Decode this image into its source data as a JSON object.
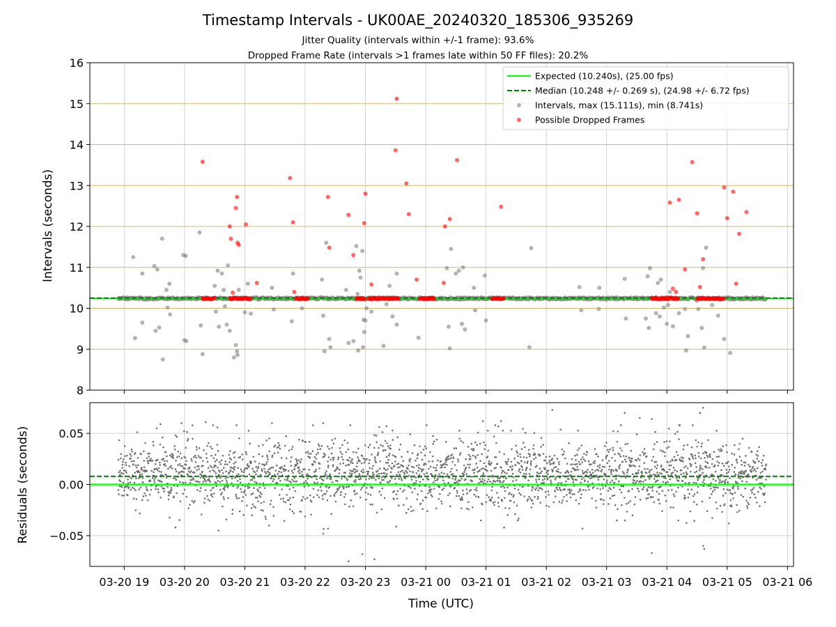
{
  "chart_data": [
    {
      "type": "scatter",
      "title": "Timestamp Intervals - UK00AE_20240320_185306_935269",
      "subtitle_lines": [
        "Jitter Quality (intervals within +/-1 frame): 93.6%",
        "Dropped Frame Rate (intervals >1 frames late within 50 FF files): 20.2%"
      ],
      "ylabel": "Intervals (seconds)",
      "ylim": [
        8,
        16
      ],
      "yticks": [
        "8",
        "9",
        "10",
        "11",
        "12",
        "13",
        "14",
        "15",
        "16"
      ],
      "xlim_hours_utc": [
        18.43,
        30.1
      ],
      "xtick_hours_utc": [
        19,
        20,
        21,
        22,
        23,
        24,
        25,
        26,
        27,
        28,
        29,
        30
      ],
      "grid": {
        "x": true,
        "y": true,
        "y_color": "#d4b86a"
      },
      "legend_position": "upper right",
      "series": [
        {
          "name": "Expected (10.240s), (25.00 fps)",
          "kind": "hline",
          "value": 10.24,
          "color": "#00ff00",
          "style": "solid"
        },
        {
          "name": "Median (10.248 +/- 0.269 s), (24.98 +/- 6.72 fps)",
          "kind": "hline",
          "value": 10.248,
          "color": "#008000",
          "style": "dashed"
        },
        {
          "name": "Intervals, max (15.111s), min (8.741s)",
          "kind": "scatter",
          "color": "#808080",
          "baseline": 10.24,
          "baseline_range_hours": [
            18.9,
            29.65
          ],
          "points": [
            [
              19.15,
              11.25
            ],
            [
              19.18,
              9.27
            ],
            [
              19.3,
              9.65
            ],
            [
              19.3,
              10.85
            ],
            [
              19.5,
              11.03
            ],
            [
              19.52,
              9.45
            ],
            [
              19.55,
              10.95
            ],
            [
              19.58,
              9.53
            ],
            [
              19.63,
              11.7
            ],
            [
              19.64,
              8.75
            ],
            [
              19.7,
              10.45
            ],
            [
              19.72,
              10.02
            ],
            [
              19.75,
              10.6
            ],
            [
              19.76,
              9.85
            ],
            [
              19.98,
              11.3
            ],
            [
              20.0,
              9.22
            ],
            [
              20.02,
              11.28
            ],
            [
              20.03,
              9.2
            ],
            [
              20.25,
              11.85
            ],
            [
              20.27,
              9.58
            ],
            [
              20.3,
              8.88
            ],
            [
              20.5,
              10.55
            ],
            [
              20.52,
              9.92
            ],
            [
              20.55,
              10.92
            ],
            [
              20.57,
              9.55
            ],
            [
              20.62,
              10.85
            ],
            [
              20.65,
              10.45
            ],
            [
              20.67,
              10.05
            ],
            [
              20.7,
              9.6
            ],
            [
              20.72,
              11.05
            ],
            [
              20.75,
              9.45
            ],
            [
              20.82,
              8.8
            ],
            [
              20.85,
              9.1
            ],
            [
              20.87,
              8.95
            ],
            [
              20.88,
              8.86
            ],
            [
              20.9,
              10.45
            ],
            [
              20.92,
              10.25
            ],
            [
              21.0,
              9.9
            ],
            [
              21.05,
              10.6
            ],
            [
              21.1,
              9.87
            ],
            [
              21.45,
              10.5
            ],
            [
              21.48,
              9.97
            ],
            [
              21.78,
              9.68
            ],
            [
              21.8,
              10.85
            ],
            [
              21.95,
              10.0
            ],
            [
              22.28,
              10.7
            ],
            [
              22.3,
              9.82
            ],
            [
              22.32,
              8.95
            ],
            [
              22.35,
              11.6
            ],
            [
              22.4,
              9.25
            ],
            [
              22.42,
              9.05
            ],
            [
              22.68,
              10.45
            ],
            [
              22.72,
              9.15
            ],
            [
              22.8,
              9.2
            ],
            [
              22.85,
              11.52
            ],
            [
              22.87,
              10.35
            ],
            [
              22.88,
              8.97
            ],
            [
              22.9,
              10.92
            ],
            [
              22.92,
              10.75
            ],
            [
              22.95,
              11.4
            ],
            [
              22.96,
              9.05
            ],
            [
              22.97,
              9.72
            ],
            [
              22.98,
              9.42
            ],
            [
              23.0,
              9.7
            ],
            [
              23.02,
              10.0
            ],
            [
              23.1,
              9.92
            ],
            [
              23.3,
              9.08
            ],
            [
              23.35,
              10.1
            ],
            [
              23.4,
              10.55
            ],
            [
              23.45,
              9.8
            ],
            [
              23.52,
              9.6
            ],
            [
              23.52,
              10.85
            ],
            [
              23.88,
              9.28
            ],
            [
              24.35,
              10.98
            ],
            [
              24.38,
              9.55
            ],
            [
              24.4,
              9.02
            ],
            [
              24.42,
              11.45
            ],
            [
              24.5,
              10.85
            ],
            [
              24.55,
              10.92
            ],
            [
              24.6,
              9.62
            ],
            [
              24.62,
              11.0
            ],
            [
              24.65,
              9.48
            ],
            [
              24.8,
              10.5
            ],
            [
              24.82,
              9.95
            ],
            [
              24.98,
              10.8
            ],
            [
              25.0,
              9.7
            ],
            [
              25.72,
              9.05
            ],
            [
              25.75,
              11.47
            ],
            [
              26.55,
              10.52
            ],
            [
              26.58,
              9.95
            ],
            [
              26.87,
              9.98
            ],
            [
              26.88,
              10.5
            ],
            [
              27.3,
              10.72
            ],
            [
              27.32,
              9.75
            ],
            [
              27.65,
              9.75
            ],
            [
              27.68,
              10.78
            ],
            [
              27.7,
              9.52
            ],
            [
              27.72,
              10.98
            ],
            [
              27.82,
              9.88
            ],
            [
              27.85,
              10.62
            ],
            [
              27.88,
              9.8
            ],
            [
              27.9,
              10.7
            ],
            [
              27.95,
              10.02
            ],
            [
              28.0,
              9.62
            ],
            [
              28.02,
              10.08
            ],
            [
              28.05,
              10.4
            ],
            [
              28.1,
              9.56
            ],
            [
              28.2,
              9.88
            ],
            [
              28.3,
              9.98
            ],
            [
              28.32,
              8.97
            ],
            [
              28.35,
              9.32
            ],
            [
              28.5,
              10.18
            ],
            [
              28.52,
              9.98
            ],
            [
              28.58,
              9.52
            ],
            [
              28.6,
              10.98
            ],
            [
              28.62,
              9.04
            ],
            [
              28.65,
              11.48
            ],
            [
              28.75,
              10.08
            ],
            [
              28.78,
              10.25
            ],
            [
              28.85,
              9.82
            ],
            [
              28.95,
              9.25
            ],
            [
              29.05,
              8.91
            ]
          ]
        },
        {
          "name": "Possible Dropped Frames",
          "kind": "scatter",
          "color": "#ff0000",
          "baseline_value": 10.24,
          "baseline_clusters_hours": [
            [
              20.3,
              20.5
            ],
            [
              20.75,
              21.1
            ],
            [
              21.85,
              22.05
            ],
            [
              22.85,
              23.0
            ],
            [
              23.05,
              23.55
            ],
            [
              23.9,
              24.15
            ],
            [
              24.05,
              24.1
            ],
            [
              25.1,
              25.3
            ],
            [
              27.75,
              28.2
            ],
            [
              28.5,
              28.95
            ]
          ],
          "points": [
            [
              20.3,
              13.58
            ],
            [
              20.75,
              12.0
            ],
            [
              20.77,
              11.7
            ],
            [
              20.8,
              10.38
            ],
            [
              20.85,
              12.45
            ],
            [
              20.87,
              12.72
            ],
            [
              20.88,
              11.6
            ],
            [
              20.9,
              11.55
            ],
            [
              21.02,
              12.05
            ],
            [
              21.2,
              10.62
            ],
            [
              21.75,
              13.18
            ],
            [
              21.8,
              12.1
            ],
            [
              21.82,
              10.4
            ],
            [
              22.38,
              12.72
            ],
            [
              22.4,
              11.48
            ],
            [
              22.72,
              12.28
            ],
            [
              22.8,
              11.3
            ],
            [
              22.98,
              12.08
            ],
            [
              23.0,
              12.8
            ],
            [
              23.1,
              10.58
            ],
            [
              23.5,
              13.86
            ],
            [
              23.52,
              15.12
            ],
            [
              23.68,
              13.05
            ],
            [
              23.72,
              12.3
            ],
            [
              23.85,
              10.7
            ],
            [
              24.3,
              10.62
            ],
            [
              24.32,
              12.0
            ],
            [
              24.4,
              12.18
            ],
            [
              24.52,
              13.62
            ],
            [
              25.25,
              12.48
            ],
            [
              28.05,
              12.58
            ],
            [
              28.1,
              10.48
            ],
            [
              28.15,
              10.4
            ],
            [
              28.2,
              12.65
            ],
            [
              28.3,
              10.95
            ],
            [
              28.42,
              13.57
            ],
            [
              28.5,
              12.32
            ],
            [
              28.55,
              10.52
            ],
            [
              28.6,
              11.2
            ],
            [
              28.95,
              12.95
            ],
            [
              29.0,
              12.2
            ],
            [
              29.1,
              12.85
            ],
            [
              29.15,
              10.6
            ],
            [
              29.2,
              11.82
            ],
            [
              29.32,
              12.35
            ]
          ]
        }
      ]
    },
    {
      "type": "scatter",
      "ylabel": "Residuals (seconds)",
      "xlabel": "Time (UTC)",
      "ylim": [
        -0.08,
        0.08
      ],
      "yticks": [
        "−0.05",
        "0.00",
        "0.05"
      ],
      "ytick_values": [
        -0.05,
        0.0,
        0.05
      ],
      "xtick_labels": [
        "03-20 19",
        "03-20 20",
        "03-20 21",
        "03-20 22",
        "03-20 23",
        "03-21 00",
        "03-21 01",
        "03-21 02",
        "03-21 03",
        "03-21 04",
        "03-21 05",
        "03-21 06"
      ],
      "grid": {
        "x": true,
        "y": true
      },
      "series": [
        {
          "kind": "hline",
          "value": 0.0,
          "color": "#00ff00",
          "style": "solid"
        },
        {
          "kind": "hline",
          "value": 0.008,
          "color": "#008000",
          "style": "dashed"
        },
        {
          "kind": "scatter",
          "color": "#707070",
          "x_range_hours": [
            18.9,
            29.65
          ],
          "distribution": {
            "mean": 0.01,
            "sd": 0.017
          },
          "points": [
            [
              20.35,
              0.061
            ],
            [
              19.95,
              0.06
            ],
            [
              19.6,
              0.059
            ],
            [
              21.45,
              0.06
            ],
            [
              22.3,
              0.06
            ],
            [
              22.75,
              0.058
            ],
            [
              23.35,
              0.057
            ],
            [
              24.95,
              0.062
            ],
            [
              25.25,
              0.062
            ],
            [
              26.1,
              0.073
            ],
            [
              27.3,
              0.07
            ],
            [
              27.55,
              0.065
            ],
            [
              28.6,
              0.075
            ],
            [
              28.55,
              0.07
            ],
            [
              27.75,
              0.064
            ],
            [
              22.72,
              -0.075
            ],
            [
              23.15,
              -0.073
            ],
            [
              22.95,
              -0.068
            ],
            [
              22.3,
              -0.048
            ],
            [
              22.38,
              -0.043
            ],
            [
              28.6,
              -0.06
            ],
            [
              28.62,
              -0.063
            ],
            [
              27.75,
              -0.067
            ],
            [
              21.4,
              -0.04
            ],
            [
              19.85,
              -0.042
            ],
            [
              25.3,
              -0.042
            ],
            [
              26.6,
              -0.043
            ]
          ]
        }
      ]
    }
  ]
}
